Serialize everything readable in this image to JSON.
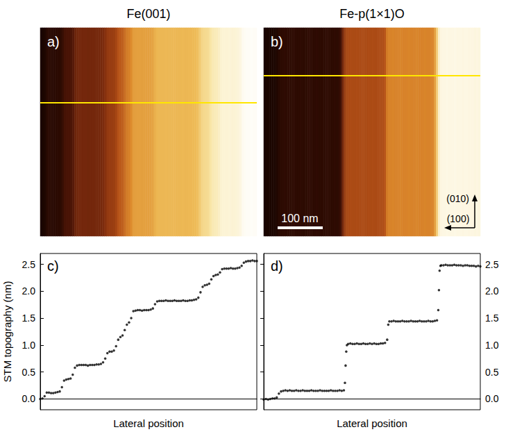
{
  "chart_data": [
    {
      "type": "heatmap",
      "title": "Fe(001)",
      "panel_label": "a)",
      "color_range": [
        0,
        2.6
      ],
      "cells": [
        0.0,
        0.01,
        0.05,
        0.12,
        0.12,
        0.11,
        0.11,
        0.12,
        0.13,
        0.14,
        0.22,
        0.34,
        0.36,
        0.37,
        0.38,
        0.45,
        0.58,
        0.62,
        0.63,
        0.63,
        0.63,
        0.63,
        0.62,
        0.63,
        0.63,
        0.63,
        0.64,
        0.64,
        0.65,
        0.68,
        0.75,
        0.85,
        0.88,
        0.88,
        0.9,
        0.98,
        1.1,
        1.15,
        1.18,
        1.28,
        1.38,
        1.42,
        1.5,
        1.63,
        1.64,
        1.65,
        1.65,
        1.64,
        1.65,
        1.65,
        1.65,
        1.66,
        1.68,
        1.76,
        1.81,
        1.82,
        1.82,
        1.82,
        1.83,
        1.82,
        1.82,
        1.82,
        1.83,
        1.82,
        1.82,
        1.82,
        1.83,
        1.82,
        1.82,
        1.83,
        1.83,
        1.84,
        1.85,
        1.88,
        1.98,
        2.08,
        2.11,
        2.12,
        2.14,
        2.22,
        2.28,
        2.3,
        2.31,
        2.35,
        2.41,
        2.42,
        2.42,
        2.42,
        2.43,
        2.42,
        2.42,
        2.43,
        2.44,
        2.47,
        2.53,
        2.55,
        2.56,
        2.56,
        2.57,
        2.56,
        2.56
      ]
    },
    {
      "type": "heatmap",
      "title": "Fe-p(1×1)O",
      "panel_label": "b)",
      "scale_bar": "100 nm",
      "directions": [
        "(010)",
        "(100)"
      ],
      "color_range": [
        0,
        2.6
      ],
      "cells": [
        -0.01,
        0.0,
        -0.01,
        0.0,
        0.01,
        0.01,
        0.03,
        0.1,
        0.14,
        0.15,
        0.16,
        0.15,
        0.16,
        0.15,
        0.15,
        0.16,
        0.15,
        0.15,
        0.16,
        0.15,
        0.15,
        0.15,
        0.16,
        0.15,
        0.15,
        0.15,
        0.16,
        0.15,
        0.15,
        0.15,
        0.15,
        0.16,
        0.15,
        0.15,
        0.15,
        0.16,
        0.15,
        0.16,
        0.3,
        0.62,
        0.88,
        1.0,
        1.02,
        1.03,
        1.02,
        1.02,
        1.03,
        1.02,
        1.02,
        1.03,
        1.02,
        1.02,
        1.03,
        1.02,
        1.03,
        1.02,
        1.02,
        1.03,
        1.03,
        1.04,
        1.1,
        1.38,
        1.44,
        1.44,
        1.45,
        1.44,
        1.44,
        1.44,
        1.45,
        1.44,
        1.44,
        1.44,
        1.45,
        1.44,
        1.44,
        1.44,
        1.45,
        1.44,
        1.44,
        1.44,
        1.45,
        1.44,
        1.44,
        1.45,
        1.46,
        1.65,
        2.02,
        2.38,
        2.47,
        2.48,
        2.48,
        2.49,
        2.48,
        2.48,
        2.48,
        2.49,
        2.48,
        2.48,
        2.48,
        2.47,
        2.48,
        2.48,
        2.47,
        2.47,
        2.47,
        2.46,
        2.47,
        2.46
      ]
    },
    {
      "type": "scatter",
      "panel_label": "c)",
      "xlabel": "Lateral position",
      "ylabel": "STM topography (nm)",
      "xlim": [
        0,
        100
      ],
      "ylim": [
        -0.2,
        2.7
      ],
      "yticks": [
        {
          "value": 0,
          "label": "0.0"
        },
        0.5,
        {
          "value": 1,
          "label": "1.0"
        },
        1.5,
        {
          "value": 2,
          "label": "2.0"
        },
        2.5
      ],
      "tick_labels": "y",
      "grid": false,
      "color": "#000000",
      "marker": "circle",
      "x": [
        0,
        1,
        2,
        3,
        4,
        5,
        6,
        7,
        8,
        9,
        10,
        11,
        12,
        13,
        14,
        15,
        16,
        17,
        18,
        19,
        20,
        21,
        22,
        23,
        24,
        25,
        26,
        27,
        28,
        29,
        30,
        31,
        32,
        33,
        34,
        35,
        36,
        37,
        38,
        39,
        40,
        41,
        42,
        43,
        44,
        45,
        46,
        47,
        48,
        49,
        50,
        51,
        52,
        53,
        54,
        55,
        56,
        57,
        58,
        59,
        60,
        61,
        62,
        63,
        64,
        65,
        66,
        67,
        68,
        69,
        70,
        71,
        72,
        73,
        74,
        75,
        76,
        77,
        78,
        79,
        80,
        81,
        82,
        83,
        84,
        85,
        86,
        87,
        88,
        89,
        90,
        91,
        92,
        93,
        94,
        95,
        96,
        97,
        98,
        99,
        100
      ],
      "values": [
        0.0,
        0.01,
        0.05,
        0.12,
        0.12,
        0.11,
        0.11,
        0.12,
        0.13,
        0.14,
        0.22,
        0.34,
        0.36,
        0.37,
        0.38,
        0.45,
        0.58,
        0.62,
        0.63,
        0.63,
        0.63,
        0.63,
        0.62,
        0.63,
        0.63,
        0.63,
        0.64,
        0.64,
        0.65,
        0.68,
        0.75,
        0.85,
        0.88,
        0.88,
        0.9,
        0.98,
        1.1,
        1.15,
        1.18,
        1.28,
        1.38,
        1.42,
        1.5,
        1.63,
        1.64,
        1.65,
        1.65,
        1.64,
        1.65,
        1.65,
        1.65,
        1.66,
        1.68,
        1.76,
        1.81,
        1.82,
        1.82,
        1.82,
        1.83,
        1.82,
        1.82,
        1.82,
        1.83,
        1.82,
        1.82,
        1.82,
        1.83,
        1.82,
        1.82,
        1.83,
        1.83,
        1.84,
        1.85,
        1.88,
        1.98,
        2.08,
        2.11,
        2.12,
        2.14,
        2.22,
        2.28,
        2.3,
        2.31,
        2.35,
        2.41,
        2.42,
        2.42,
        2.42,
        2.43,
        2.42,
        2.42,
        2.43,
        2.44,
        2.47,
        2.53,
        2.55,
        2.56,
        2.56,
        2.57,
        2.56,
        2.56
      ]
    },
    {
      "type": "scatter",
      "panel_label": "d)",
      "xlabel": "Lateral position",
      "xlim": [
        0,
        100
      ],
      "ylim": [
        -0.2,
        2.7
      ],
      "yticks": [
        {
          "value": 0,
          "label": "0.0"
        },
        0.5,
        {
          "value": 1,
          "label": "1.0"
        },
        1.5,
        {
          "value": 2,
          "label": "2.0"
        },
        2.5
      ],
      "tick_labels": "y",
      "grid": false,
      "color": "#000000",
      "marker": "circle",
      "x": [
        0,
        1,
        2,
        3,
        4,
        5,
        6,
        7,
        8,
        9,
        10,
        11,
        12,
        13,
        14,
        15,
        16,
        17,
        18,
        19,
        20,
        21,
        22,
        23,
        24,
        25,
        26,
        27,
        28,
        29,
        30,
        31,
        32,
        33,
        34,
        35,
        36,
        37,
        37.5,
        37.8,
        38.1,
        38.4,
        39,
        40,
        41,
        42,
        43,
        44,
        45,
        46,
        47,
        48,
        49,
        50,
        51,
        52,
        53,
        54,
        55,
        56,
        57,
        57.5,
        58,
        59,
        60,
        61,
        62,
        63,
        64,
        65,
        66,
        67,
        68,
        69,
        70,
        71,
        72,
        73,
        74,
        75,
        76,
        77,
        78,
        79,
        80,
        80.6,
        80.9,
        81.2,
        81.6,
        82,
        83,
        84,
        85,
        86,
        87,
        88,
        89,
        90,
        91,
        92,
        93,
        94,
        95,
        96,
        97,
        98,
        99,
        100
      ],
      "values": [
        -0.01,
        0.0,
        -0.01,
        0.0,
        0.01,
        0.01,
        0.03,
        0.1,
        0.14,
        0.15,
        0.16,
        0.15,
        0.16,
        0.15,
        0.15,
        0.16,
        0.15,
        0.15,
        0.16,
        0.15,
        0.15,
        0.15,
        0.16,
        0.15,
        0.15,
        0.15,
        0.16,
        0.15,
        0.15,
        0.15,
        0.15,
        0.16,
        0.15,
        0.15,
        0.15,
        0.16,
        0.15,
        0.16,
        0.3,
        0.62,
        0.88,
        1.0,
        1.02,
        1.03,
        1.02,
        1.02,
        1.03,
        1.02,
        1.02,
        1.03,
        1.02,
        1.02,
        1.03,
        1.02,
        1.03,
        1.02,
        1.02,
        1.03,
        1.03,
        1.04,
        1.1,
        1.38,
        1.44,
        1.44,
        1.45,
        1.44,
        1.44,
        1.44,
        1.45,
        1.44,
        1.44,
        1.44,
        1.45,
        1.44,
        1.44,
        1.44,
        1.45,
        1.44,
        1.44,
        1.44,
        1.45,
        1.44,
        1.44,
        1.45,
        1.46,
        1.65,
        2.02,
        2.38,
        2.47,
        2.48,
        2.48,
        2.49,
        2.48,
        2.48,
        2.48,
        2.49,
        2.48,
        2.48,
        2.48,
        2.47,
        2.48,
        2.48,
        2.47,
        2.47,
        2.47,
        2.46,
        2.47,
        2.46
      ]
    }
  ]
}
